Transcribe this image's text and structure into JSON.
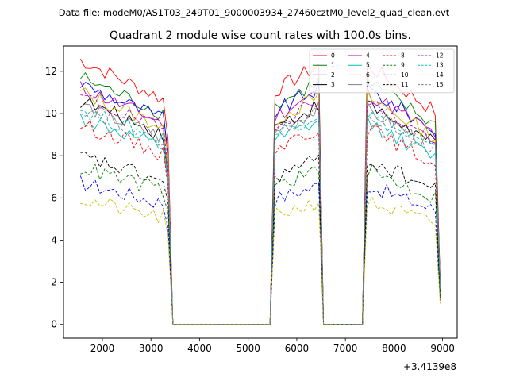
{
  "header": {
    "suptitle": "Data file: modeM0/AS1T03_249T01_9000003934_27460cztM0_level2_quad_clean.evt"
  },
  "chart_data": {
    "type": "line",
    "title": "Quadrant 2 module wise count rates with 100.0s bins.",
    "xlabel": "",
    "ylabel": "",
    "x_offset_label": "+3.4139e8",
    "xlim": [
      1200,
      9300
    ],
    "ylim": [
      -0.65,
      13.2
    ],
    "xticks": [
      2000,
      3000,
      4000,
      5000,
      6000,
      7000,
      8000,
      9000
    ],
    "xtick_labels": [
      "2000",
      "3000",
      "4000",
      "5000",
      "6000",
      "7000",
      "8000",
      "9000"
    ],
    "yticks": [
      0,
      2,
      4,
      6,
      8,
      10,
      12
    ],
    "ytick_labels": [
      "0",
      "2",
      "4",
      "6",
      "8",
      "10",
      "12"
    ],
    "segments": [
      {
        "start": 1550,
        "end": 3450,
        "step": 100
      },
      {
        "start": 5550,
        "end": 6550,
        "step": 100
      },
      {
        "start": 7450,
        "end": 8950,
        "step": 100
      }
    ],
    "series": [
      {
        "name": "0",
        "color": "#ff0000",
        "dash": "solid",
        "level": 12.3
      },
      {
        "name": "1",
        "color": "#008000",
        "dash": "solid",
        "level": 11.5
      },
      {
        "name": "2",
        "color": "#0000ff",
        "dash": "solid",
        "level": 11.2
      },
      {
        "name": "3",
        "color": "#000000",
        "dash": "solid",
        "level": 10.4
      },
      {
        "name": "4",
        "color": "#bf00bf",
        "dash": "solid",
        "level": 11.0
      },
      {
        "name": "5",
        "color": "#00bfbf",
        "dash": "solid",
        "level": 9.6
      },
      {
        "name": "6",
        "color": "#bfbf00",
        "dash": "solid",
        "level": 10.8
      },
      {
        "name": "7",
        "color": "#808080",
        "dash": "solid",
        "level": 10.2
      },
      {
        "name": "8",
        "color": "#ff0000",
        "dash": "dashed",
        "level": 9.3
      },
      {
        "name": "9",
        "color": "#008000",
        "dash": "dashed",
        "level": 7.3
      },
      {
        "name": "10",
        "color": "#0000ff",
        "dash": "dashed",
        "level": 6.6
      },
      {
        "name": "11",
        "color": "#000000",
        "dash": "dashed",
        "level": 7.8
      },
      {
        "name": "12",
        "color": "#bf00bf",
        "dash": "dashed",
        "level": 10.6
      },
      {
        "name": "13",
        "color": "#00bfbf",
        "dash": "dashed",
        "level": 10.0
      },
      {
        "name": "14",
        "color": "#bfbf00",
        "dash": "dashed",
        "level": 5.8
      },
      {
        "name": "15",
        "color": "#808080",
        "dash": "dashed",
        "level": 10.1
      }
    ],
    "legend_position": "top-right",
    "legend_columns": 4
  }
}
